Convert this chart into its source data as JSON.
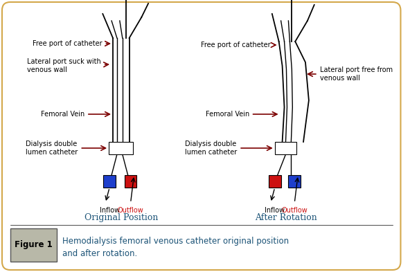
{
  "bg_color": "#ffffff",
  "border_color": "#d4a84b",
  "figure_label": "Figure 1",
  "caption_line1": "Hemodialysis femoral venous catheter original position",
  "caption_line2": "and after rotation.",
  "left_title": "Original Position",
  "right_title": "After Rotation",
  "arrow_color": "#7b0000",
  "text_color": "#000000",
  "inflow_color": "#1e3fcc",
  "outflow_color": "#cc1111",
  "label_inflow": "Inflow",
  "label_outflow": "Outflow",
  "caption_color": "#1a5276",
  "title_color": "#1a5276"
}
